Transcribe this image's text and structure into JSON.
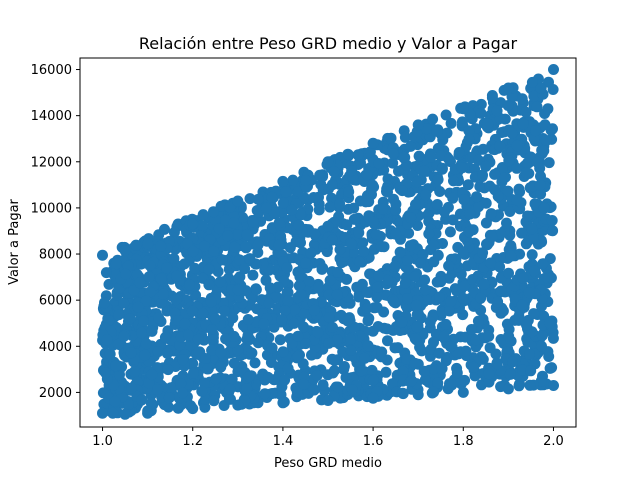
{
  "chart_data": {
    "type": "scatter",
    "title": "Relación entre Peso GRD medio y Valor a Pagar",
    "xlabel": "Peso GRD medio",
    "ylabel": "Valor a Pagar",
    "xlim": [
      0.95,
      2.05
    ],
    "ylim": [
      500,
      16500
    ],
    "xticks": [
      1.0,
      1.2,
      1.4,
      1.6,
      1.8,
      2.0
    ],
    "xtick_labels": [
      "1.0",
      "1.2",
      "1.4",
      "1.6",
      "1.8",
      "2.0"
    ],
    "yticks": [
      2000,
      4000,
      6000,
      8000,
      10000,
      12000,
      14000,
      16000
    ],
    "ytick_labels": [
      "2000",
      "4000",
      "6000",
      "8000",
      "10000",
      "12000",
      "14000",
      "16000"
    ],
    "grid": false,
    "legend": "none",
    "marker_color": "#1f77b4",
    "point_cloud": {
      "x_range": [
        1.0,
        2.0
      ],
      "y_lower_edge": [
        [
          1.0,
          1050
        ],
        [
          2.0,
          2300
        ]
      ],
      "y_upper_edge": [
        [
          1.0,
          8000
        ],
        [
          2.0,
          16000
        ]
      ],
      "estimated_count": 2400
    },
    "points": [
      [
        1.0,
        1100
      ],
      [
        1.0,
        7950
      ],
      [
        1.05,
        1050
      ],
      [
        1.05,
        8150
      ],
      [
        1.1,
        1100
      ],
      [
        1.1,
        8450
      ],
      [
        1.2,
        1300
      ],
      [
        1.2,
        9300
      ],
      [
        1.3,
        1450
      ],
      [
        1.3,
        10300
      ],
      [
        1.4,
        1550
      ],
      [
        1.4,
        11150
      ],
      [
        1.5,
        1650
      ],
      [
        1.5,
        12000
      ],
      [
        1.6,
        1750
      ],
      [
        1.6,
        12800
      ],
      [
        1.7,
        1900
      ],
      [
        1.7,
        13600
      ],
      [
        1.8,
        2000
      ],
      [
        1.8,
        14300
      ],
      [
        1.9,
        2150
      ],
      [
        1.9,
        15200
      ],
      [
        2.0,
        2300
      ],
      [
        2.0,
        16000
      ],
      [
        1.25,
        5200
      ],
      [
        1.45,
        7600
      ],
      [
        1.65,
        9900
      ],
      [
        1.85,
        11800
      ],
      [
        1.55,
        4300
      ],
      [
        1.75,
        6800
      ]
    ]
  }
}
